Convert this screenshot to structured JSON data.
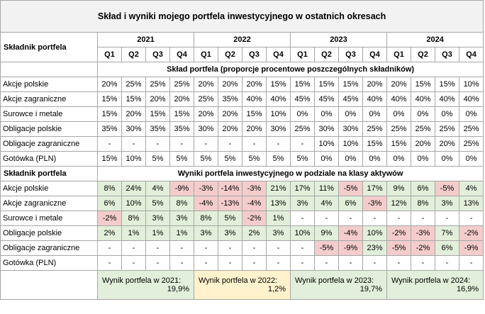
{
  "title": "Skład i wyniki mojego portfela inwestycyjnego w ostatnich okresach",
  "component_header": "Składnik portfela",
  "years": [
    "2021",
    "2022",
    "2023",
    "2024"
  ],
  "quarters": [
    "Q1",
    "Q2",
    "Q3",
    "Q4"
  ],
  "composition": {
    "heading": "Skład portfela (proporcje procentowe poszczególnych składników)",
    "rows": [
      {
        "label": "Akcje polskie",
        "values": [
          "20%",
          "25%",
          "25%",
          "25%",
          "20%",
          "20%",
          "20%",
          "15%",
          "15%",
          "15%",
          "15%",
          "20%",
          "20%",
          "15%",
          "15%",
          "10%"
        ]
      },
      {
        "label": "Akcje zagraniczne",
        "values": [
          "15%",
          "15%",
          "20%",
          "20%",
          "25%",
          "35%",
          "40%",
          "40%",
          "45%",
          "45%",
          "45%",
          "40%",
          "40%",
          "40%",
          "40%",
          "40%"
        ]
      },
      {
        "label": "Surowce i metale",
        "values": [
          "15%",
          "20%",
          "15%",
          "15%",
          "20%",
          "20%",
          "15%",
          "10%",
          "0%",
          "0%",
          "0%",
          "0%",
          "0%",
          "0%",
          "0%",
          "0%"
        ]
      },
      {
        "label": "Obligacje polskie",
        "values": [
          "35%",
          "30%",
          "35%",
          "35%",
          "30%",
          "20%",
          "20%",
          "30%",
          "25%",
          "30%",
          "30%",
          "25%",
          "25%",
          "25%",
          "25%",
          "25%"
        ]
      },
      {
        "label": "Obligacje zagraniczne",
        "values": [
          "-",
          "-",
          "-",
          "-",
          "-",
          "-",
          "-",
          "-",
          "-",
          "10%",
          "10%",
          "15%",
          "15%",
          "20%",
          "20%",
          "25%"
        ]
      },
      {
        "label": "Gotówka (PLN)",
        "values": [
          "15%",
          "10%",
          "5%",
          "5%",
          "5%",
          "5%",
          "5%",
          "5%",
          "5%",
          "0%",
          "0%",
          "0%",
          "0%",
          "0%",
          "0%",
          "0%"
        ]
      }
    ]
  },
  "results": {
    "heading": "Wyniki portfela inwestycyjnego w podziale na klasy aktywów",
    "rows": [
      {
        "label": "Akcje polskie",
        "values": [
          "8%",
          "24%",
          "4%",
          "-9%",
          "-3%",
          "-14%",
          "-3%",
          "21%",
          "17%",
          "11%",
          "-5%",
          "17%",
          "9%",
          "6%",
          "-5%",
          "4%"
        ]
      },
      {
        "label": "Akcje zagraniczne",
        "values": [
          "6%",
          "10%",
          "5%",
          "8%",
          "-4%",
          "-13%",
          "-4%",
          "13%",
          "3%",
          "4%",
          "6%",
          "-3%",
          "12%",
          "8%",
          "3%",
          "13%"
        ]
      },
      {
        "label": "Surowce i metale",
        "values": [
          "-2%",
          "8%",
          "3%",
          "3%",
          "8%",
          "5%",
          "-2%",
          "1%",
          "-",
          "-",
          "-",
          "-",
          "-",
          "-",
          "-",
          "-"
        ]
      },
      {
        "label": "Obligacje polskie",
        "values": [
          "2%",
          "1%",
          "1%",
          "1%",
          "3%",
          "3%",
          "2%",
          "3%",
          "10%",
          "9%",
          "-4%",
          "10%",
          "-2%",
          "-3%",
          "7%",
          "-2%"
        ]
      },
      {
        "label": "Obligacje zagraniczne",
        "values": [
          "-",
          "-",
          "-",
          "-",
          "-",
          "-",
          "-",
          "-",
          "-",
          "-5%",
          "-9%",
          "23%",
          "-5%",
          "-2%",
          "6%",
          "-9%"
        ]
      },
      {
        "label": "Gotówka (PLN)",
        "values": [
          "-",
          "-",
          "-",
          "-",
          "-",
          "-",
          "-",
          "-",
          "-",
          "-",
          "-",
          "-",
          "-",
          "-",
          "-",
          "-"
        ]
      }
    ]
  },
  "summary": [
    {
      "label": "Wynik portfela w 2021:",
      "value": "19,9%",
      "color": "#e2efda"
    },
    {
      "label": "Wynik portfela w 2022:",
      "value": "1,2%",
      "color": "#fff2cc"
    },
    {
      "label": "Wynik portfela w 2023:",
      "value": "19,7%",
      "color": "#e2efda"
    },
    {
      "label": "Wynik portfela w 2024:",
      "value": "16,9%",
      "color": "#e2efda"
    }
  ]
}
